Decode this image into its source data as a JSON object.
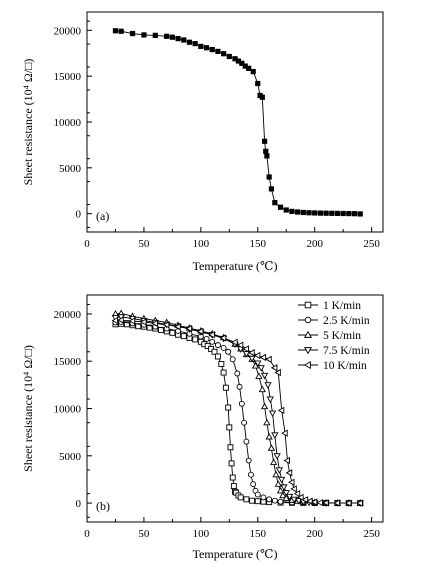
{
  "chart_data": [
    {
      "type": "scatter",
      "panel_label": "(a)",
      "xlabel": "Temperature (℃)",
      "ylabel": "Sheet resistance (10⁴ Ω/□)",
      "xlim": [
        0,
        260
      ],
      "ylim": [
        -2000,
        22000
      ],
      "xticks": [
        0,
        50,
        100,
        150,
        200,
        250
      ],
      "yticks": [
        0,
        5000,
        10000,
        15000,
        20000
      ],
      "grid": false,
      "series": [
        {
          "marker": "filled-square",
          "x": [
            25,
            30,
            40,
            50,
            60,
            70,
            75,
            80,
            85,
            90,
            95,
            100,
            105,
            110,
            115,
            120,
            125,
            130,
            133,
            136,
            139,
            142,
            146,
            150,
            152,
            154,
            156,
            157,
            158,
            160,
            162,
            165,
            170,
            175,
            180,
            185,
            190,
            195,
            200,
            205,
            210,
            215,
            220,
            225,
            230,
            235,
            240
          ],
          "y": [
            19950,
            19900,
            19650,
            19500,
            19450,
            19350,
            19250,
            19100,
            18950,
            18700,
            18550,
            18250,
            18100,
            17900,
            17700,
            17450,
            17150,
            16900,
            16650,
            16400,
            16100,
            15850,
            15500,
            14200,
            12900,
            12700,
            7900,
            6800,
            6300,
            4000,
            2700,
            1200,
            700,
            400,
            250,
            180,
            130,
            100,
            80,
            60,
            50,
            40,
            30,
            20,
            10,
            0,
            -30
          ]
        }
      ]
    },
    {
      "type": "scatter",
      "panel_label": "(b)",
      "xlabel": "Temperature (℃)",
      "ylabel": "Sheet resistance (10⁴ Ω/□)",
      "xlim": [
        0,
        260
      ],
      "ylim": [
        -2000,
        22000
      ],
      "xticks": [
        0,
        50,
        100,
        150,
        200,
        250
      ],
      "yticks": [
        0,
        5000,
        10000,
        15000,
        20000
      ],
      "grid": false,
      "legend_position": "top-right",
      "series": [
        {
          "name": "1 K/min",
          "marker": "square",
          "x": [
            25,
            30,
            35,
            40,
            45,
            50,
            55,
            60,
            65,
            70,
            75,
            80,
            85,
            90,
            95,
            100,
            103,
            106,
            109,
            112,
            115,
            118,
            120,
            122,
            124,
            125,
            126,
            127,
            128,
            129,
            130,
            131,
            133,
            135,
            140,
            145,
            150,
            155,
            160,
            170,
            180,
            190,
            200,
            210,
            220,
            230,
            240
          ],
          "y": [
            18900,
            18950,
            18900,
            18800,
            18700,
            18650,
            18550,
            18450,
            18300,
            18150,
            18000,
            17800,
            17650,
            17450,
            17300,
            17050,
            16800,
            16600,
            16300,
            16000,
            15500,
            14700,
            13800,
            12200,
            10100,
            8000,
            5900,
            4200,
            2700,
            1800,
            1200,
            1100,
            800,
            600,
            400,
            250,
            200,
            150,
            100,
            50,
            30,
            20,
            10,
            0,
            0,
            0,
            0
          ]
        },
        {
          "name": "2.5 K/min",
          "marker": "circle",
          "x": [
            25,
            30,
            40,
            50,
            60,
            70,
            80,
            90,
            100,
            105,
            110,
            115,
            120,
            124,
            128,
            132,
            134,
            136,
            138,
            140,
            142,
            144,
            146,
            148,
            150,
            155,
            160,
            165,
            170,
            180,
            190,
            200,
            210,
            220,
            230,
            240
          ],
          "y": [
            19100,
            19150,
            19000,
            18850,
            18650,
            18450,
            18200,
            17900,
            17600,
            17350,
            17050,
            16700,
            16400,
            16000,
            15200,
            13700,
            12300,
            10500,
            8500,
            6500,
            4500,
            3000,
            2000,
            1300,
            900,
            600,
            400,
            250,
            150,
            80,
            50,
            30,
            20,
            10,
            0,
            0
          ]
        },
        {
          "name": "5 K/min",
          "marker": "triangle-up",
          "x": [
            25,
            30,
            40,
            50,
            60,
            70,
            80,
            90,
            100,
            110,
            120,
            130,
            135,
            140,
            145,
            148,
            151,
            154,
            156,
            158,
            160,
            162,
            164,
            166,
            168,
            170,
            172,
            175,
            180,
            185,
            190,
            200,
            210,
            220,
            230,
            240
          ],
          "y": [
            20000,
            20050,
            19750,
            19500,
            19300,
            19100,
            18800,
            18500,
            18200,
            17900,
            17500,
            16800,
            16300,
            15700,
            15200,
            14500,
            13400,
            12000,
            10200,
            8500,
            7000,
            5800,
            4300,
            3000,
            2000,
            1300,
            800,
            500,
            300,
            200,
            120,
            60,
            30,
            10,
            0,
            0
          ]
        },
        {
          "name": "7.5 K/min",
          "marker": "triangle-down",
          "x": [
            25,
            30,
            40,
            50,
            60,
            70,
            80,
            90,
            100,
            110,
            120,
            130,
            135,
            140,
            145,
            150,
            153,
            156,
            159,
            161,
            163,
            165,
            167,
            169,
            171,
            173,
            175,
            178,
            182,
            186,
            190,
            195,
            200,
            210,
            220,
            230,
            240
          ],
          "y": [
            19600,
            19700,
            19500,
            19300,
            19100,
            18900,
            18700,
            18400,
            18100,
            17800,
            17400,
            16800,
            16300,
            15800,
            15300,
            14800,
            14300,
            13500,
            12500,
            11000,
            9500,
            7200,
            5000,
            3500,
            2500,
            1700,
            1100,
            700,
            400,
            250,
            150,
            80,
            40,
            20,
            10,
            0,
            0
          ]
        },
        {
          "name": "10 K/min",
          "marker": "triangle-left",
          "x": [
            25,
            30,
            40,
            50,
            60,
            70,
            80,
            90,
            100,
            110,
            120,
            130,
            135,
            140,
            145,
            150,
            155,
            160,
            165,
            168,
            171,
            174,
            176,
            178,
            180,
            182,
            185,
            188,
            192,
            196,
            200,
            205,
            210,
            220,
            230,
            240
          ],
          "y": [
            19300,
            19350,
            19250,
            19150,
            19000,
            18850,
            18650,
            18450,
            18150,
            17800,
            17450,
            17000,
            16700,
            16300,
            15900,
            15600,
            15400,
            15200,
            14300,
            13800,
            9800,
            7400,
            4500,
            3200,
            2200,
            1500,
            1000,
            600,
            350,
            200,
            100,
            50,
            30,
            10,
            0,
            0
          ]
        }
      ]
    }
  ]
}
